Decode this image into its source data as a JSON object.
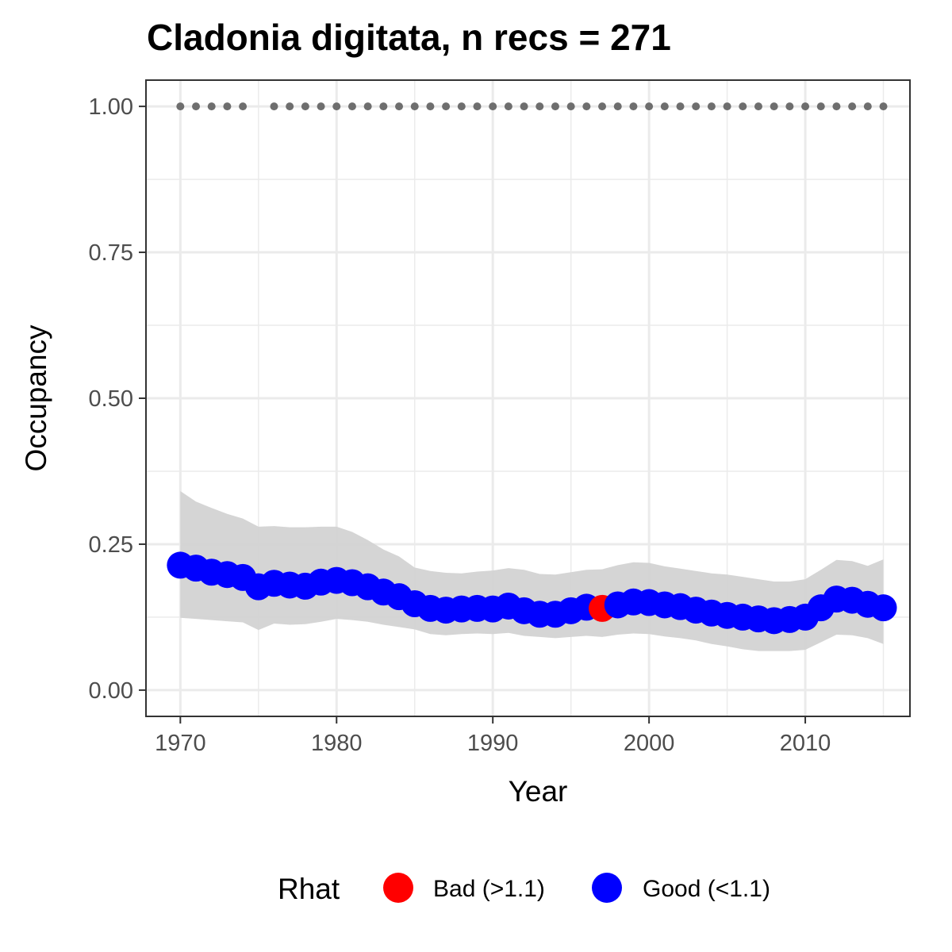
{
  "chart_data": {
    "type": "line",
    "title": "Cladonia digitata, n recs = 271",
    "xlabel": "Year",
    "ylabel": "Occupancy",
    "xlim": [
      1967.8,
      2016.7
    ],
    "ylim": [
      -0.045,
      1.045
    ],
    "x_ticks": [
      "1970",
      "1980",
      "1990",
      "2000",
      "2010"
    ],
    "y_ticks": [
      "0.00",
      "0.25",
      "0.50",
      "0.75",
      "1.00"
    ],
    "x_tick_values": [
      1970,
      1980,
      1990,
      2000,
      2010
    ],
    "y_tick_values": [
      0,
      0.25,
      0.5,
      0.75,
      1.0
    ],
    "grid": true,
    "legend": {
      "title": "Rhat",
      "position": "bottom",
      "entries": [
        {
          "label": "Bad (>1.1)",
          "color": "#ff0000"
        },
        {
          "label": "Good (<1.1)",
          "color": "#0000ff"
        }
      ]
    },
    "series": [
      {
        "years": [
          1970,
          1971,
          1972,
          1973,
          1974,
          1975,
          1976,
          1977,
          1978,
          1979,
          1980,
          1981,
          1982,
          1983,
          1984,
          1985,
          1986,
          1987,
          1988,
          1989,
          1990,
          1991,
          1992,
          1993,
          1994,
          1995,
          1996,
          1997,
          1998,
          1999,
          2000,
          2001,
          2002,
          2003,
          2004,
          2005,
          2006,
          2007,
          2008,
          2009,
          2010,
          2011,
          2012,
          2013,
          2014,
          2015
        ],
        "occupancy": [
          0.214,
          0.209,
          0.202,
          0.198,
          0.193,
          0.177,
          0.183,
          0.18,
          0.178,
          0.185,
          0.188,
          0.184,
          0.177,
          0.168,
          0.16,
          0.148,
          0.14,
          0.137,
          0.139,
          0.14,
          0.139,
          0.144,
          0.136,
          0.13,
          0.13,
          0.136,
          0.142,
          0.14,
          0.146,
          0.151,
          0.15,
          0.146,
          0.143,
          0.137,
          0.132,
          0.128,
          0.125,
          0.122,
          0.119,
          0.121,
          0.125,
          0.141,
          0.156,
          0.154,
          0.147,
          0.141
        ],
        "lower": [
          0.124,
          0.122,
          0.12,
          0.118,
          0.116,
          0.103,
          0.114,
          0.112,
          0.113,
          0.117,
          0.122,
          0.12,
          0.117,
          0.112,
          0.108,
          0.104,
          0.096,
          0.094,
          0.096,
          0.097,
          0.096,
          0.098,
          0.093,
          0.091,
          0.089,
          0.091,
          0.093,
          0.091,
          0.095,
          0.097,
          0.096,
          0.092,
          0.089,
          0.085,
          0.079,
          0.075,
          0.07,
          0.067,
          0.067,
          0.067,
          0.069,
          0.082,
          0.095,
          0.094,
          0.089,
          0.079
        ],
        "upper": [
          0.341,
          0.323,
          0.312,
          0.302,
          0.294,
          0.28,
          0.281,
          0.279,
          0.279,
          0.28,
          0.28,
          0.271,
          0.257,
          0.241,
          0.229,
          0.21,
          0.204,
          0.201,
          0.2,
          0.203,
          0.205,
          0.209,
          0.206,
          0.199,
          0.198,
          0.202,
          0.206,
          0.207,
          0.214,
          0.219,
          0.218,
          0.212,
          0.208,
          0.204,
          0.2,
          0.198,
          0.194,
          0.19,
          0.186,
          0.186,
          0.19,
          0.206,
          0.223,
          0.221,
          0.213,
          0.224
        ],
        "rhat": [
          "Good",
          "Good",
          "Good",
          "Good",
          "Good",
          "Good",
          "Good",
          "Good",
          "Good",
          "Good",
          "Good",
          "Good",
          "Good",
          "Good",
          "Good",
          "Good",
          "Good",
          "Good",
          "Good",
          "Good",
          "Good",
          "Good",
          "Good",
          "Good",
          "Good",
          "Good",
          "Good",
          "Bad",
          "Good",
          "Good",
          "Good",
          "Good",
          "Good",
          "Good",
          "Good",
          "Good",
          "Good",
          "Good",
          "Good",
          "Good",
          "Good",
          "Good",
          "Good",
          "Good",
          "Good",
          "Good"
        ]
      }
    ],
    "record_years": [
      1970,
      1971,
      1972,
      1973,
      1974,
      1976,
      1977,
      1978,
      1979,
      1980,
      1981,
      1982,
      1983,
      1984,
      1985,
      1986,
      1987,
      1988,
      1989,
      1990,
      1991,
      1992,
      1993,
      1994,
      1995,
      1996,
      1997,
      1998,
      1999,
      2000,
      2001,
      2002,
      2003,
      2004,
      2005,
      2006,
      2007,
      2008,
      2009,
      2010,
      2011,
      2012,
      2013,
      2014,
      2015
    ],
    "record_level": 1.0,
    "colors": {
      "good": "#0000ff",
      "bad": "#ff0000",
      "ribbon": "#d3d3d3",
      "records": "#6e6e6e",
      "grid": "#ebebeb",
      "panel_border": "#333333"
    }
  }
}
